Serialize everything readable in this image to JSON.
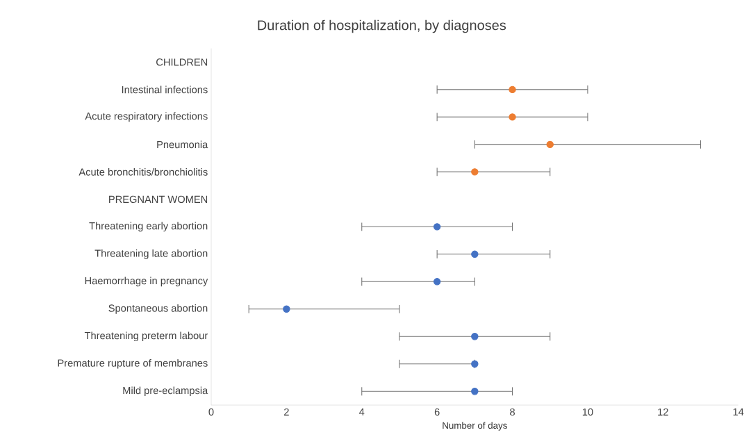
{
  "chart_data": {
    "type": "scatter",
    "title": "Duration of hospitalization, by diagnoses",
    "xlabel": "Number of days",
    "orientation": "horizontal",
    "marker": "circle",
    "categories": [
      "CHILDREN",
      "Intestinal infections",
      "Acute respiratory infections",
      "Pneumonia",
      "Acute bronchitis/bronchiolitis",
      "PREGNANT WOMEN",
      "Threatening early abortion",
      "Threatening late abortion",
      "Haemorrhage in pregnancy",
      "Spontaneous abortion",
      "Threatening preterm labour",
      "Premature rupture of membranes",
      "Mild pre-eclampsia"
    ],
    "series": [
      {
        "color": "#ed7d31",
        "values": [
          null,
          8,
          8,
          9,
          7,
          null,
          null,
          null,
          null,
          null,
          null,
          null,
          null
        ],
        "errors": [
          null,
          [
            6,
            10
          ],
          [
            6,
            10
          ],
          [
            7,
            13
          ],
          [
            6,
            9
          ],
          null,
          null,
          null,
          null,
          null,
          null,
          null,
          null
        ]
      },
      {
        "color": "#4472c4",
        "values": [
          null,
          null,
          null,
          null,
          null,
          null,
          6,
          7,
          6,
          2,
          7,
          7,
          7
        ],
        "errors": [
          null,
          null,
          null,
          null,
          null,
          null,
          [
            4,
            8
          ],
          [
            6,
            9
          ],
          [
            4,
            7
          ],
          [
            1,
            5
          ],
          [
            5,
            9
          ],
          [
            5,
            7
          ],
          [
            4,
            8
          ]
        ]
      }
    ],
    "xlim": [
      0,
      14
    ],
    "xticks": [
      0,
      2,
      4,
      6,
      8,
      10,
      12,
      14
    ]
  }
}
